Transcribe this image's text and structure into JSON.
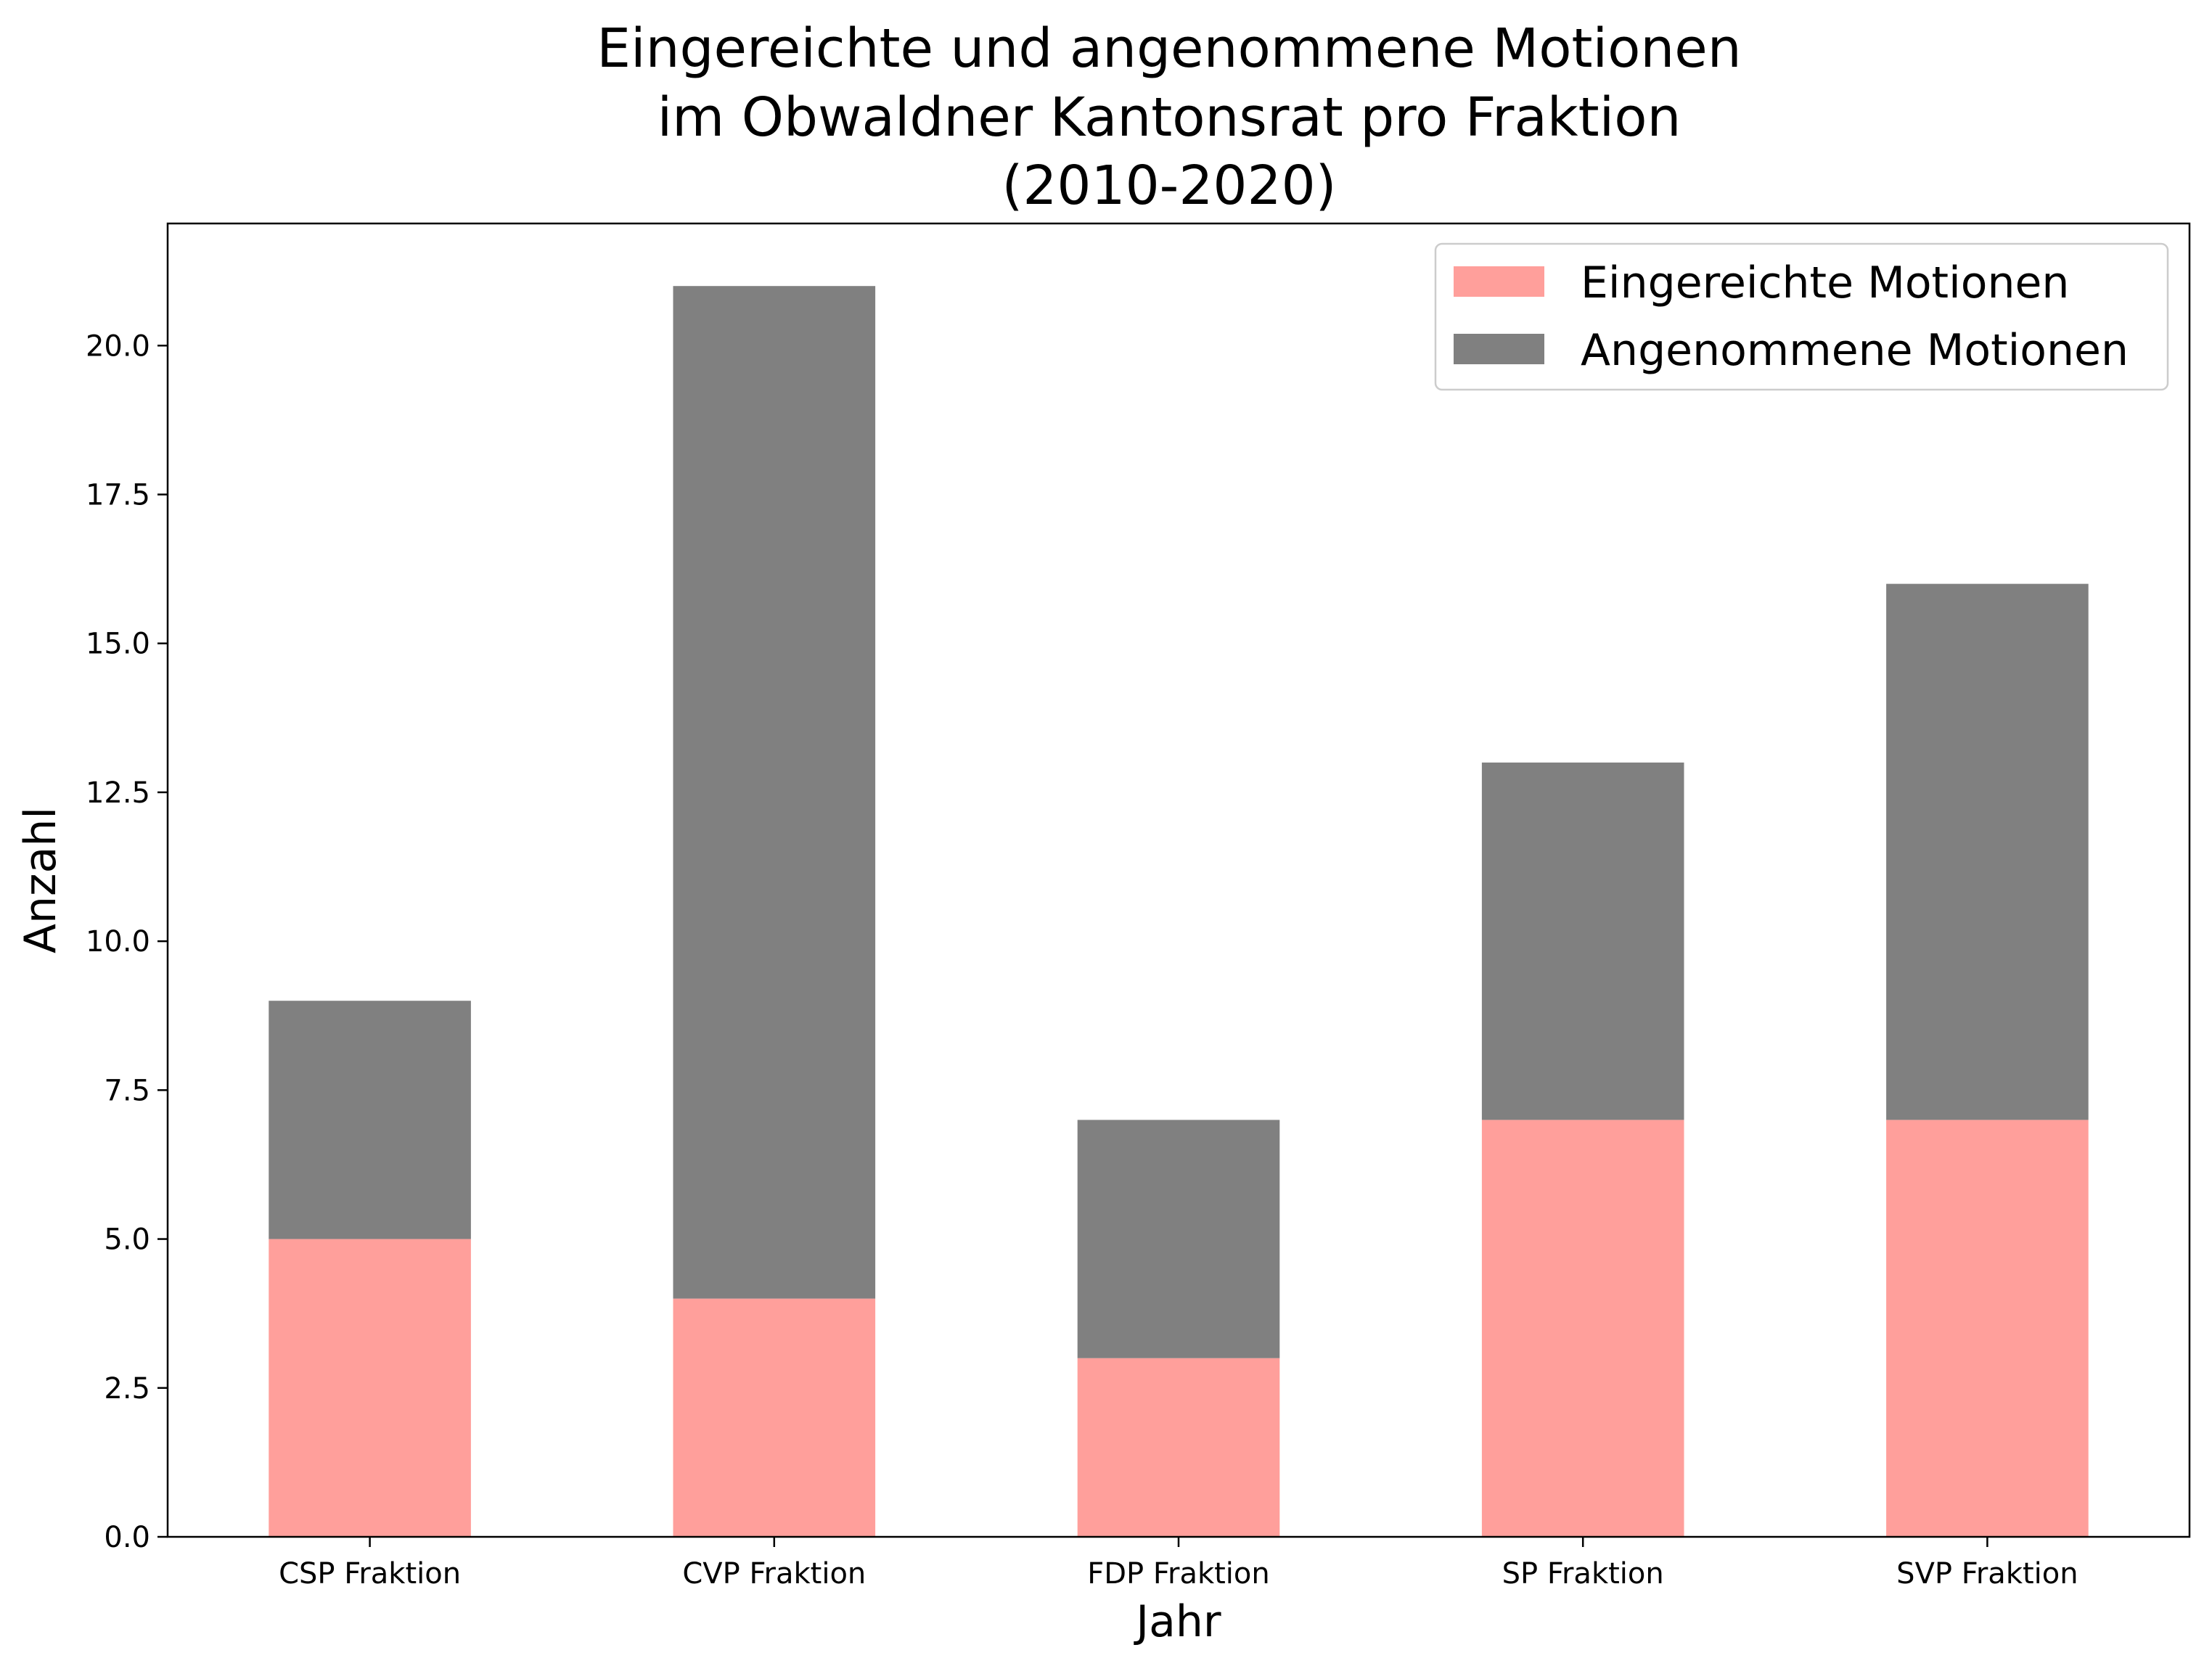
{
  "chart_data": {
    "type": "bar",
    "stacked": true,
    "title": [
      "Eingereichte und angenommene Motionen",
      "im Obwaldner Kantonsrat pro Fraktion",
      "(2010-2020)"
    ],
    "xlabel": "Jahr",
    "ylabel": "Anzahl",
    "categories": [
      "CSP Fraktion",
      "CVP Fraktion",
      "FDP Fraktion",
      "SP Fraktion",
      "SVP Fraktion"
    ],
    "series": [
      {
        "name": "Eingereichte Motionen",
        "color": "#ff9f9b",
        "values": [
          5,
          4,
          3,
          7,
          7
        ]
      },
      {
        "name": "Angenommene Motionen",
        "color": "#808080",
        "values": [
          4,
          17,
          4,
          6,
          9
        ]
      }
    ],
    "ylim": [
      0,
      22.05
    ],
    "yticks": [
      "0.0",
      "2.5",
      "5.0",
      "7.5",
      "10.0",
      "12.5",
      "15.0",
      "17.5",
      "20.0"
    ],
    "grid": false,
    "legend": "top-right"
  }
}
